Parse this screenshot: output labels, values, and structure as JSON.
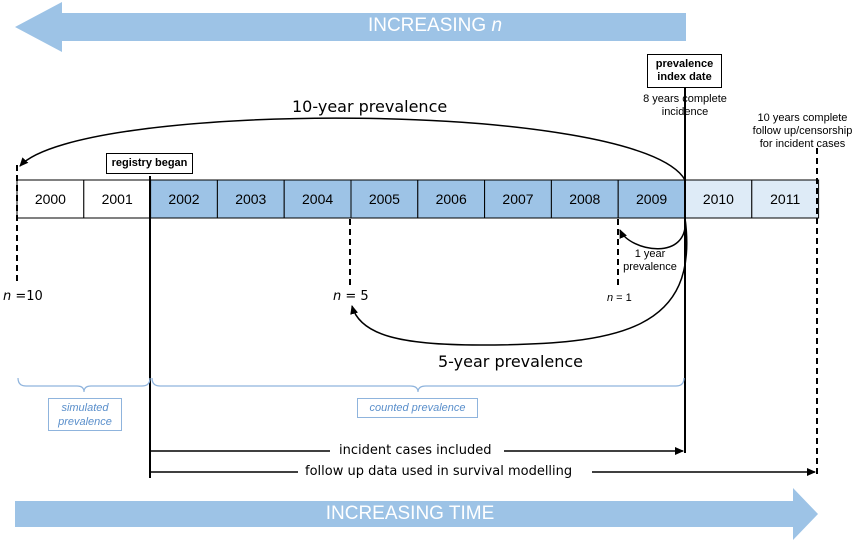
{
  "banner_top": {
    "text": "INCREASING",
    "var": "n"
  },
  "banner_bottom": {
    "text": "INCREASING TIME"
  },
  "years": [
    "2000",
    "2001",
    "2002",
    "2003",
    "2004",
    "2005",
    "2006",
    "2007",
    "2008",
    "2009",
    "2010",
    "2011"
  ],
  "year_styles": [
    "plain",
    "plain",
    "counted",
    "counted",
    "counted",
    "counted",
    "counted",
    "counted",
    "counted",
    "counted",
    "future",
    "future"
  ],
  "colors": {
    "arrow": "#9dc3e6",
    "counted": "#9dc3e6",
    "future": "#deebf7",
    "bracket": "#8fb4dd",
    "bracket_text": "#5a8fcb"
  },
  "registry_began": "registry began",
  "index_date": {
    "line1": "prevalence",
    "line2": "index date"
  },
  "complete_incidence": {
    "line1": "8 years complete",
    "line2": "incidence"
  },
  "follow_up_note": {
    "line1": "10 years complete",
    "line2": "follow up/censorship",
    "line3": "for incident cases"
  },
  "prevalence_10": "10-year prevalence",
  "prevalence_5": "5-year prevalence",
  "prevalence_1": {
    "line1": "1 year",
    "line2": "prevalence"
  },
  "n_labels": {
    "n10": {
      "var": "n",
      "rest": " =10"
    },
    "n5": {
      "var": "n",
      "rest": " = 5"
    },
    "n1": {
      "var": "n",
      "rest": " = 1"
    }
  },
  "simulated": {
    "line1": "simulated",
    "line2": "prevalence"
  },
  "counted": "counted prevalence",
  "incident_cases": "incident cases included",
  "follow_up_data": "follow up data used in survival modelling"
}
